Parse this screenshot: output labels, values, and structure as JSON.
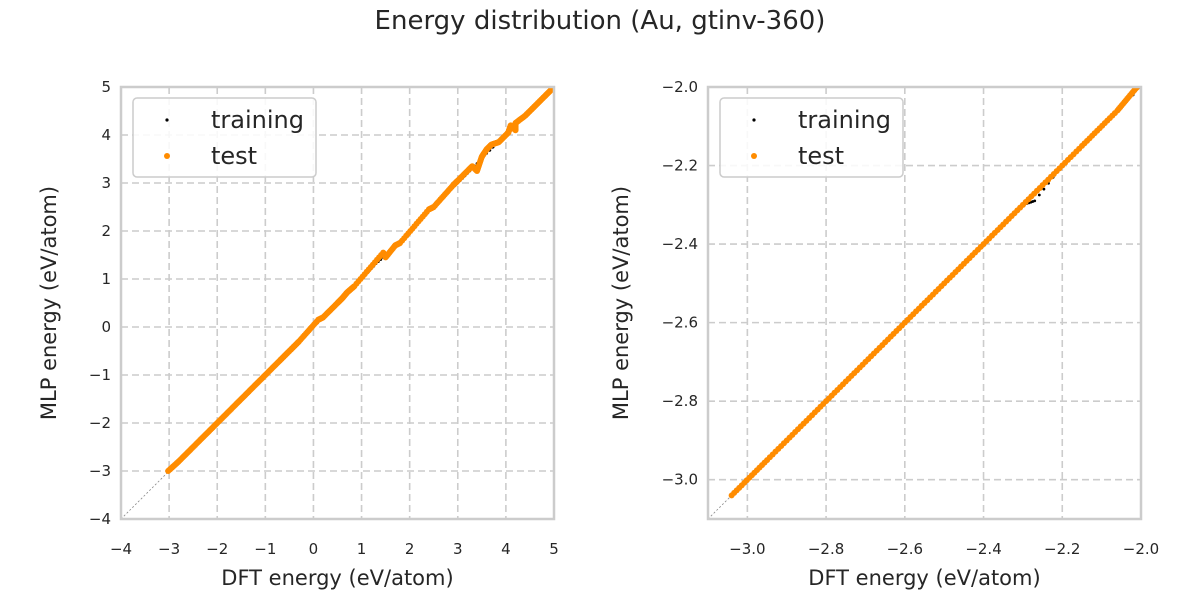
{
  "figure": {
    "title": "Energy distribution (Au, gtinv-360)"
  },
  "colors": {
    "training": "#000000",
    "test": "#ff8c00",
    "grid": "#cccccc",
    "spine": "#cccccc",
    "diagonal": "#888888"
  },
  "chart_data": [
    {
      "type": "scatter",
      "xlabel": "DFT energy (eV/atom)",
      "ylabel": "MLP energy (eV/atom)",
      "xlim": [
        -4,
        5
      ],
      "ylim": [
        -4,
        5
      ],
      "xticks": [
        -4,
        -3,
        -2,
        -1,
        0,
        1,
        2,
        3,
        4,
        5
      ],
      "yticks": [
        -4,
        -3,
        -2,
        -1,
        0,
        1,
        2,
        3,
        4,
        5
      ],
      "xtick_labels": [
        "−4",
        "−3",
        "−2",
        "−1",
        "0",
        "1",
        "2",
        "3",
        "4",
        "5"
      ],
      "ytick_labels": [
        "−4",
        "−3",
        "−2",
        "−1",
        "0",
        "1",
        "2",
        "3",
        "4",
        "5"
      ],
      "grid": true,
      "legend_position": "top-left",
      "diagonal": true,
      "series": [
        {
          "name": "training",
          "color": "#000000",
          "marker_size": 1.4,
          "points": [
            [
              -3.0,
              -3.0
            ],
            [
              -2.5,
              -2.5
            ],
            [
              -2.0,
              -2.0
            ],
            [
              -1.5,
              -1.5
            ],
            [
              -1.0,
              -1.0
            ],
            [
              -0.5,
              -0.5
            ],
            [
              0.0,
              0.0
            ],
            [
              0.5,
              0.5
            ],
            [
              1.0,
              1.0
            ],
            [
              1.3,
              1.32
            ],
            [
              1.6,
              1.58
            ],
            [
              2.0,
              2.0
            ],
            [
              2.3,
              2.3
            ],
            [
              2.7,
              2.72
            ],
            [
              3.0,
              3.0
            ],
            [
              3.3,
              3.3
            ],
            [
              3.6,
              3.62
            ],
            [
              4.0,
              4.0
            ],
            [
              4.3,
              4.3
            ],
            [
              4.6,
              4.6
            ],
            [
              4.9,
              4.9
            ]
          ]
        },
        {
          "name": "test",
          "color": "#ff8c00",
          "marker_size": 3.0,
          "points": [
            [
              -3.02,
              -3.0
            ],
            [
              -2.8,
              -2.8
            ],
            [
              -2.5,
              -2.5
            ],
            [
              -2.2,
              -2.2
            ],
            [
              -1.9,
              -1.9
            ],
            [
              -1.6,
              -1.6
            ],
            [
              -1.3,
              -1.3
            ],
            [
              -1.0,
              -1.0
            ],
            [
              -0.7,
              -0.7
            ],
            [
              -0.5,
              -0.5
            ],
            [
              -0.3,
              -0.3
            ],
            [
              0.1,
              0.15
            ],
            [
              0.2,
              0.2
            ],
            [
              0.5,
              0.5
            ],
            [
              0.6,
              0.6
            ],
            [
              0.7,
              0.72
            ],
            [
              0.85,
              0.85
            ],
            [
              1.45,
              1.55
            ],
            [
              1.5,
              1.45
            ],
            [
              1.7,
              1.7
            ],
            [
              1.8,
              1.75
            ],
            [
              2.4,
              2.45
            ],
            [
              2.5,
              2.5
            ],
            [
              2.9,
              2.95
            ],
            [
              3.0,
              3.05
            ],
            [
              3.3,
              3.35
            ],
            [
              3.4,
              3.25
            ],
            [
              3.5,
              3.55
            ],
            [
              3.6,
              3.7
            ],
            [
              3.7,
              3.8
            ],
            [
              3.85,
              3.85
            ],
            [
              4.05,
              4.05
            ],
            [
              4.1,
              4.2
            ],
            [
              4.2,
              4.1
            ],
            [
              4.2,
              4.25
            ],
            [
              4.4,
              4.4
            ],
            [
              4.6,
              4.6
            ],
            [
              4.8,
              4.8
            ],
            [
              4.95,
              4.95
            ]
          ]
        }
      ]
    },
    {
      "type": "scatter",
      "xlabel": "DFT energy (eV/atom)",
      "ylabel": "MLP energy (eV/atom)",
      "xlim": [
        -3.1,
        -2.0
      ],
      "ylim": [
        -3.1,
        -2.0
      ],
      "xticks": [
        -3.0,
        -2.8,
        -2.6,
        -2.4,
        -2.2,
        -2.0
      ],
      "yticks": [
        -3.0,
        -2.8,
        -2.6,
        -2.4,
        -2.2,
        -2.0
      ],
      "xtick_labels": [
        "−3.0",
        "−2.8",
        "−2.6",
        "−2.4",
        "−2.2",
        "−2.0"
      ],
      "ytick_labels": [
        "−3.0",
        "−2.8",
        "−2.6",
        "−2.4",
        "−2.2",
        "−2.0"
      ],
      "grid": true,
      "legend_position": "top-left",
      "diagonal": true,
      "series": [
        {
          "name": "training",
          "color": "#000000",
          "marker_size": 1.4,
          "points": [
            [
              -3.0,
              -3.0
            ],
            [
              -2.7,
              -2.7
            ],
            [
              -2.5,
              -2.5
            ],
            [
              -2.4,
              -2.4
            ],
            [
              -2.3,
              -2.3
            ],
            [
              -2.27,
              -2.29
            ],
            [
              -2.2,
              -2.2
            ],
            [
              -2.1,
              -2.1
            ],
            [
              -2.02,
              -2.02
            ]
          ]
        },
        {
          "name": "test",
          "color": "#ff8c00",
          "marker_size": 3.0,
          "points": [
            [
              -3.04,
              -3.04
            ],
            [
              -2.95,
              -2.95
            ],
            [
              -2.85,
              -2.85
            ],
            [
              -2.75,
              -2.75
            ],
            [
              -2.65,
              -2.65
            ],
            [
              -2.55,
              -2.55
            ],
            [
              -2.45,
              -2.45
            ],
            [
              -2.35,
              -2.35
            ],
            [
              -2.25,
              -2.25
            ],
            [
              -2.15,
              -2.15
            ],
            [
              -2.06,
              -2.06
            ],
            [
              -2.01,
              -2.0
            ]
          ]
        }
      ]
    }
  ]
}
